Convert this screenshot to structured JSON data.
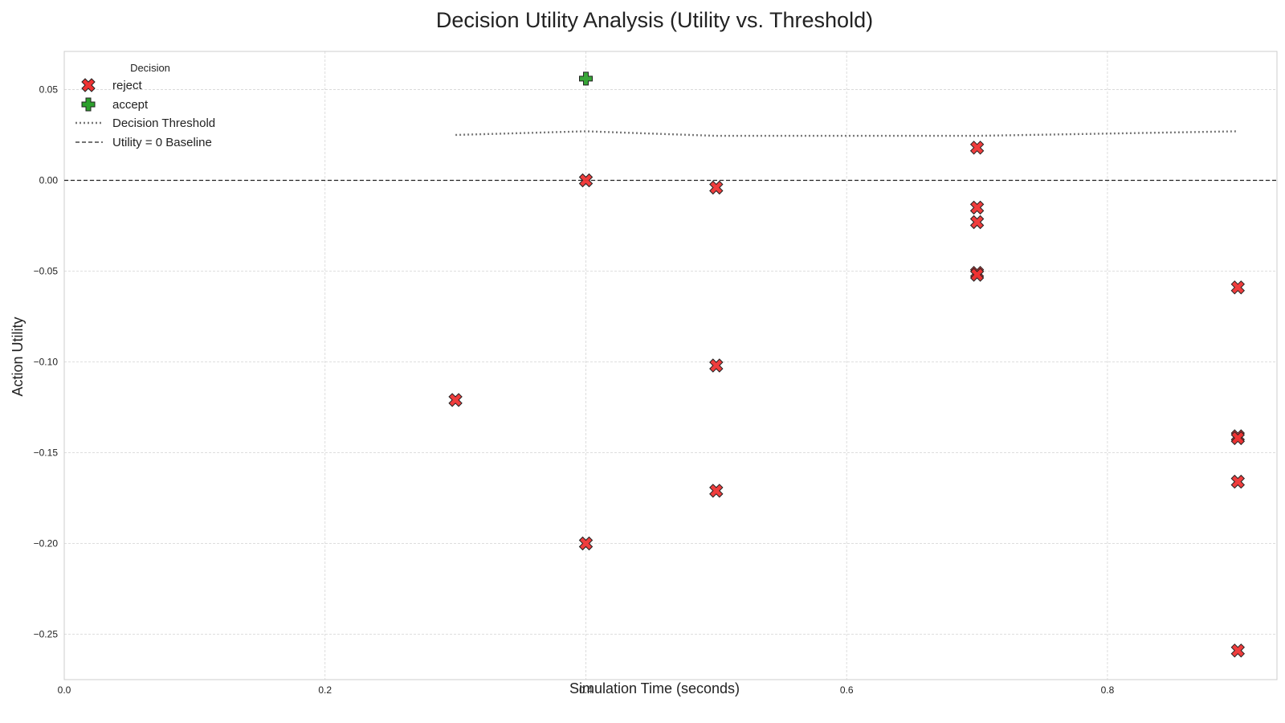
{
  "chart_data": {
    "type": "scatter",
    "title": "Decision Utility Analysis (Utility vs. Threshold)",
    "xlabel": "Simulation Time (seconds)",
    "ylabel": "Action Utility",
    "xlim": [
      0.0,
      0.93
    ],
    "ylim": [
      -0.275,
      0.071
    ],
    "x_ticks": [
      0.0,
      0.2,
      0.4,
      0.6,
      0.8
    ],
    "x_tick_labels": [
      "0.0",
      "0.2",
      "0.4",
      "0.6",
      "0.8"
    ],
    "y_ticks": [
      0.05,
      0.0,
      -0.05,
      -0.1,
      -0.15,
      -0.2,
      -0.25
    ],
    "y_tick_labels": [
      "0.05",
      "0.00",
      "−0.05",
      "−0.10",
      "−0.15",
      "−0.20",
      "−0.25"
    ],
    "grid": true,
    "legend": {
      "title": "Decision",
      "placement": "top-left",
      "entries": [
        "reject",
        "accept",
        "Decision Threshold",
        "Utility = 0 Baseline"
      ]
    },
    "series": [
      {
        "name": "reject",
        "marker": "x-filled",
        "color": "#ee3333",
        "points": [
          {
            "x": 0.3,
            "y": -0.121
          },
          {
            "x": 0.4,
            "y": 0.0
          },
          {
            "x": 0.4,
            "y": -0.2
          },
          {
            "x": 0.5,
            "y": -0.004
          },
          {
            "x": 0.5,
            "y": -0.102
          },
          {
            "x": 0.5,
            "y": -0.171
          },
          {
            "x": 0.7,
            "y": 0.018
          },
          {
            "x": 0.7,
            "y": -0.015
          },
          {
            "x": 0.7,
            "y": -0.023
          },
          {
            "x": 0.7,
            "y": -0.051
          },
          {
            "x": 0.7,
            "y": -0.052
          },
          {
            "x": 0.9,
            "y": -0.059
          },
          {
            "x": 0.9,
            "y": -0.141
          },
          {
            "x": 0.9,
            "y": -0.142
          },
          {
            "x": 0.9,
            "y": -0.166
          },
          {
            "x": 0.9,
            "y": -0.259
          }
        ]
      },
      {
        "name": "accept",
        "marker": "plus-filled",
        "color": "#2ca02c",
        "points": [
          {
            "x": 0.4,
            "y": 0.056
          }
        ]
      }
    ],
    "lines": [
      {
        "name": "Decision Threshold",
        "style": "dotted",
        "color": "#777777",
        "x": [
          0.3,
          0.4,
          0.5,
          0.7,
          0.9
        ],
        "y": [
          0.025,
          0.027,
          0.0245,
          0.0245,
          0.027
        ]
      },
      {
        "name": "Utility = 0 Baseline",
        "style": "dashed",
        "color": "#222222",
        "y_constant": 0.0
      }
    ]
  }
}
